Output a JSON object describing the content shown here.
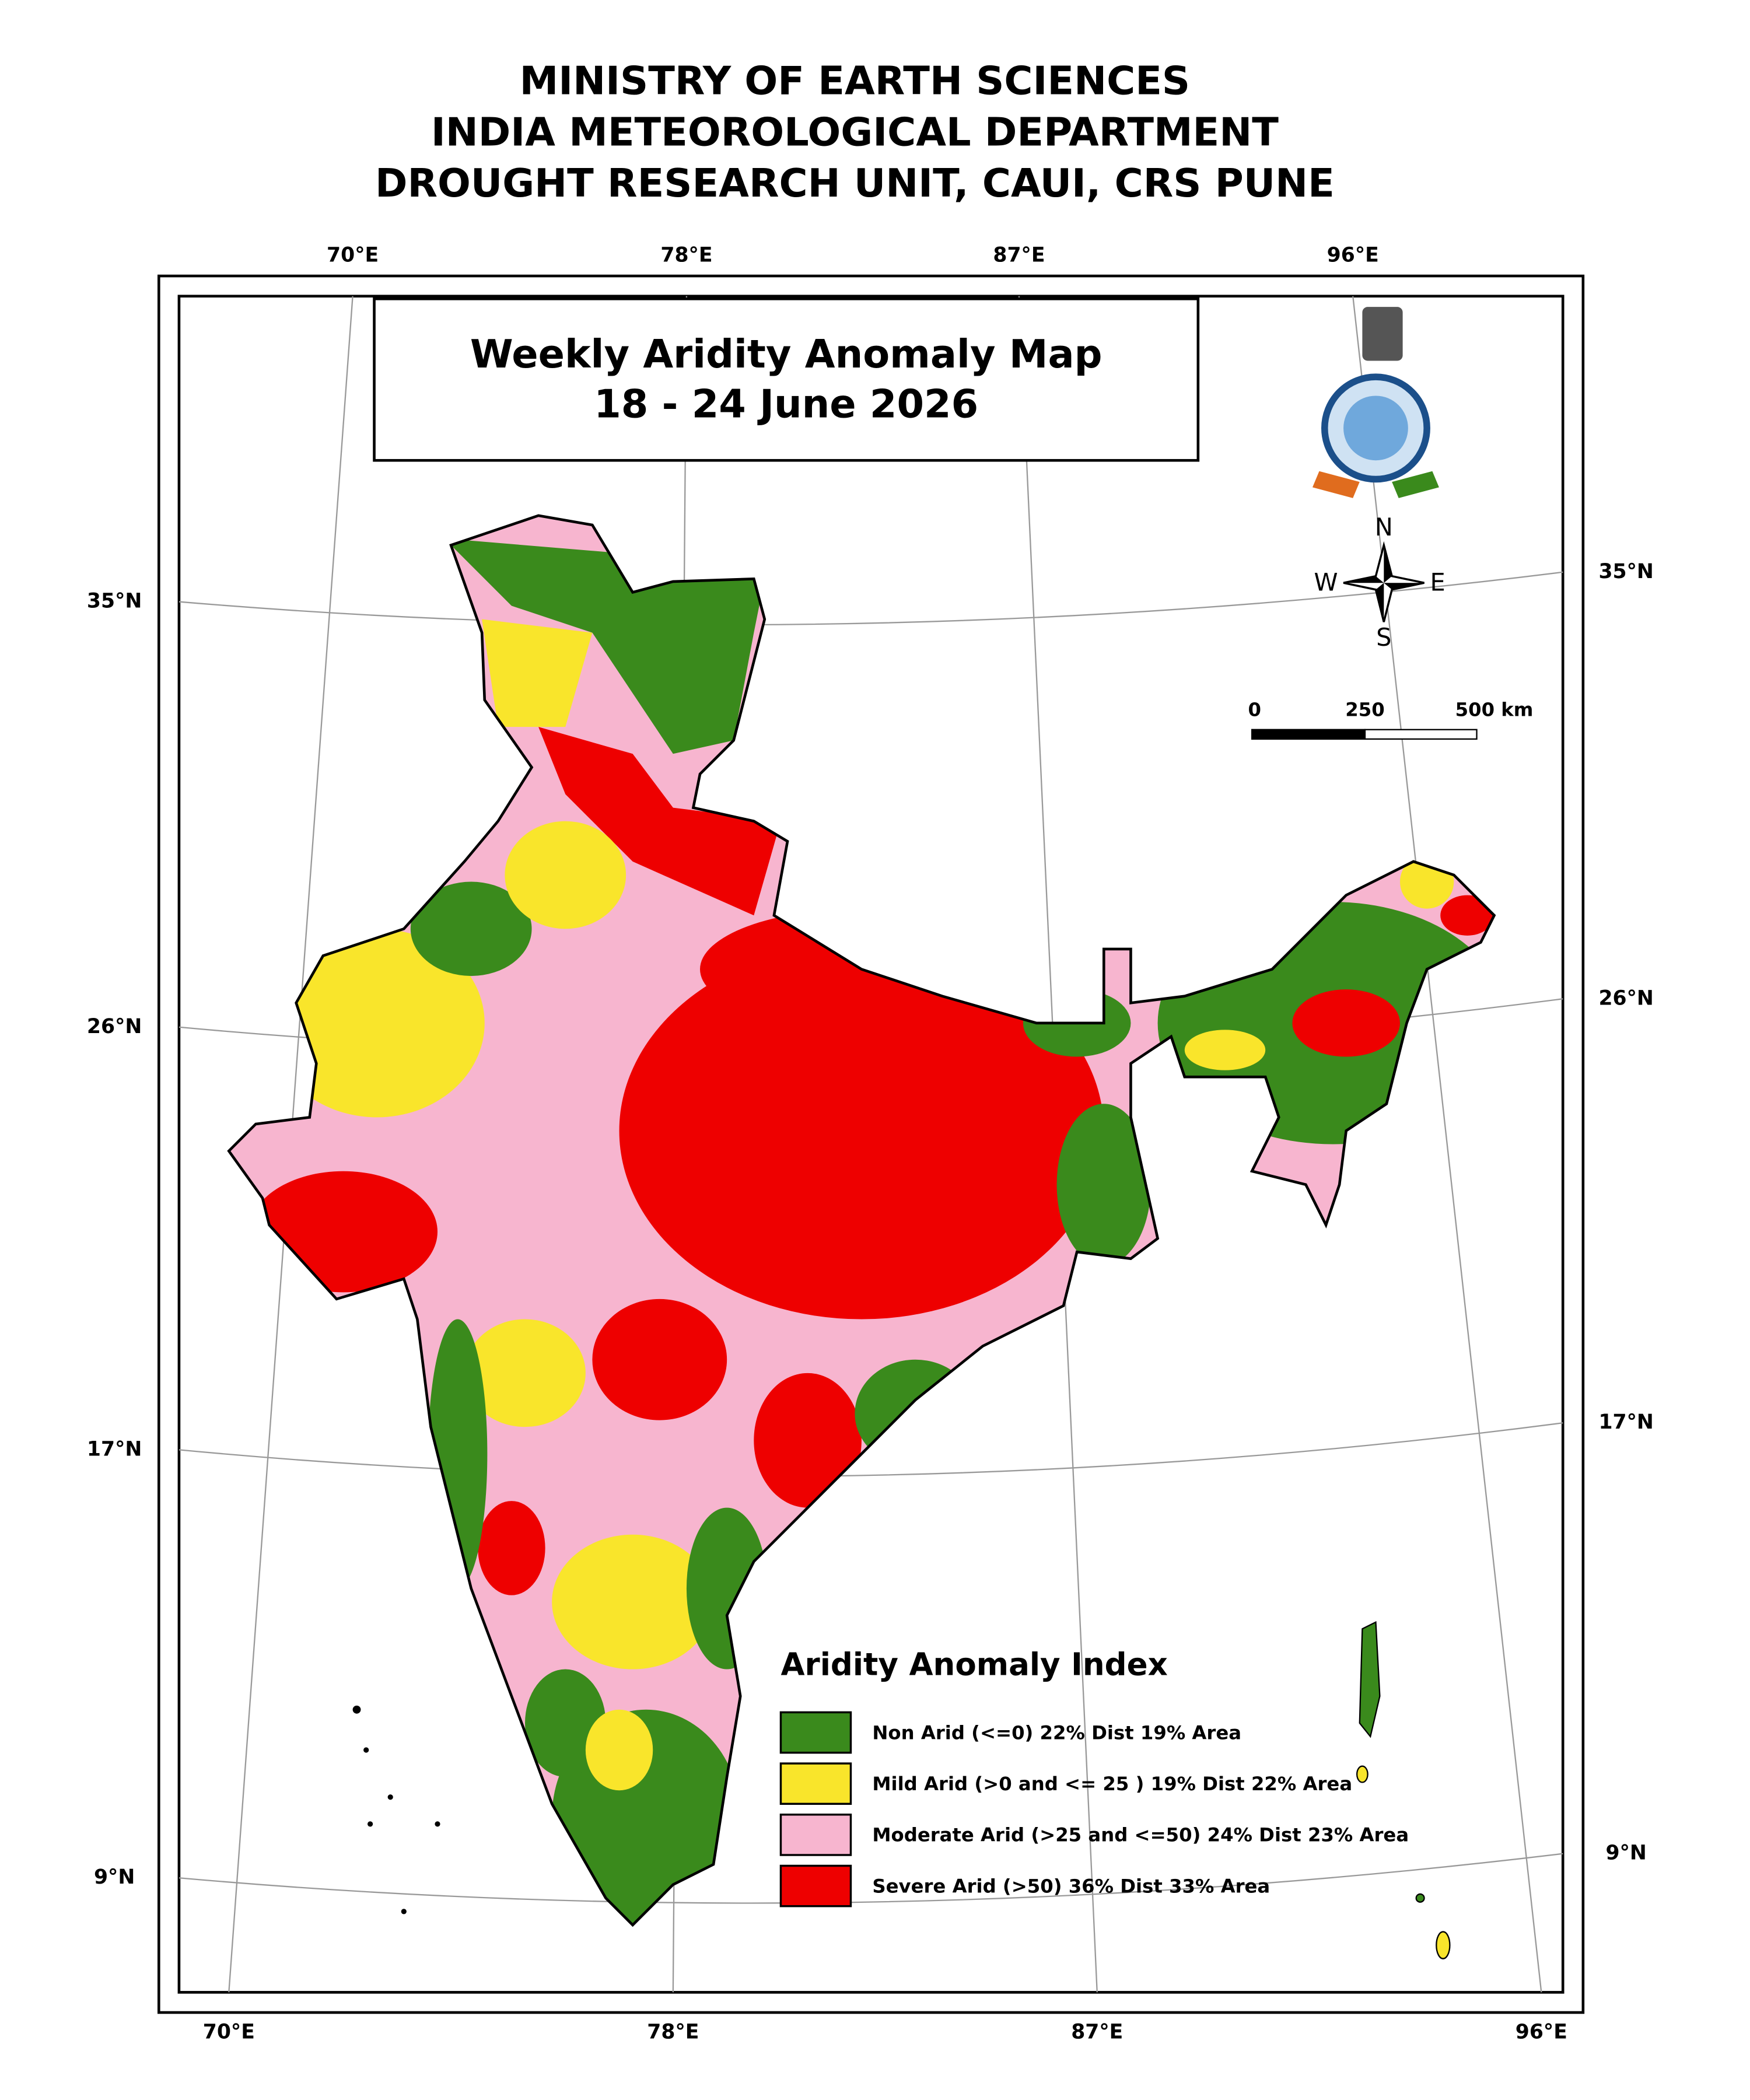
{
  "header": {
    "lines": [
      "MINISTRY OF EARTH SCIENCES",
      "INDIA METEOROLOGICAL DEPARTMENT",
      "DROUGHT RESEARCH UNIT, CAUI, CRS PUNE"
    ]
  },
  "map_title": {
    "lines": [
      "Weekly Aridity Anomaly Map",
      "18 - 24 June 2026"
    ]
  },
  "graticule": {
    "top": [
      "70°E",
      "78°E",
      "87°E",
      "96°E"
    ],
    "bottom": [
      "70°E",
      "78°E",
      "87°E",
      "96°E"
    ],
    "left": [
      "35°N",
      "26°N",
      "17°N",
      "9°N"
    ],
    "right": [
      "35°N",
      "26°N",
      "17°N",
      "9°N"
    ]
  },
  "compass": {
    "north": "N",
    "west": "W",
    "east": "E",
    "south": "S"
  },
  "scale_bar": {
    "labels": [
      "0",
      "250",
      "500 km"
    ]
  },
  "legend": {
    "title": "Aridity Anomaly Index",
    "items": [
      {
        "label": "Non Arid (<=0) 22% Dist 19% Area",
        "color": "#3a8a1c"
      },
      {
        "label": "Mild Arid (>0 and <= 25 ) 19% Dist  22% Area",
        "color": "#f9e52b"
      },
      {
        "label": "Moderate Arid (>25 and <=50) 24% Dist 23% Area",
        "color": "#f7b5cf"
      },
      {
        "label": "Severe Arid (>50) 36% Dist  33% Area",
        "color": "#ee0000"
      }
    ]
  }
}
